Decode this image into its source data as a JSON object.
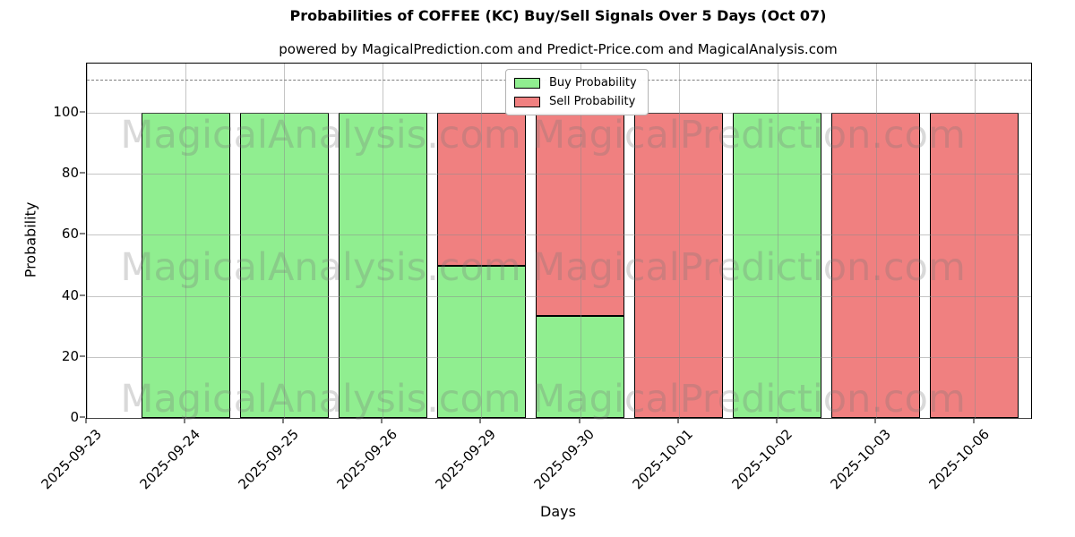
{
  "chart_data": {
    "type": "bar",
    "stacked": true,
    "title": "Probabilities of COFFEE (KC) Buy/Sell Signals Over 5 Days (Oct 07)",
    "subtitle": "powered by MagicalPrediction.com and Predict-Price.com and MagicalAnalysis.com",
    "xlabel": "Days",
    "ylabel": "Probability",
    "categories": [
      "2025-09-23",
      "2025-09-24",
      "2025-09-25",
      "2025-09-26",
      "2025-09-29",
      "2025-09-30",
      "2025-10-01",
      "2025-10-02",
      "2025-10-03",
      "2025-10-06"
    ],
    "series": [
      {
        "name": "Buy Probability",
        "color": "#90EE90",
        "values": [
          0,
          100,
          100,
          100,
          50,
          33.33,
          0,
          100,
          0,
          0
        ]
      },
      {
        "name": "Sell Probability",
        "color": "#F08080",
        "values": [
          0,
          0,
          0,
          0,
          50,
          66.67,
          100,
          0,
          100,
          100
        ]
      }
    ],
    "yticks": [
      0,
      20,
      40,
      60,
      80,
      100
    ],
    "ylim": [
      0,
      116
    ],
    "grid": true,
    "threshold_line": {
      "y": 110,
      "style": "dashed",
      "color": "#7f7f7f"
    },
    "legend": {
      "position": "top-center",
      "entries": [
        "Buy Probability",
        "Sell Probability"
      ]
    },
    "bar_edge_color": "#000000",
    "watermarks": {
      "left_text": "MagicalAnalysis.com",
      "right_text": "MagicalPrediction.com",
      "rows": 3
    }
  }
}
